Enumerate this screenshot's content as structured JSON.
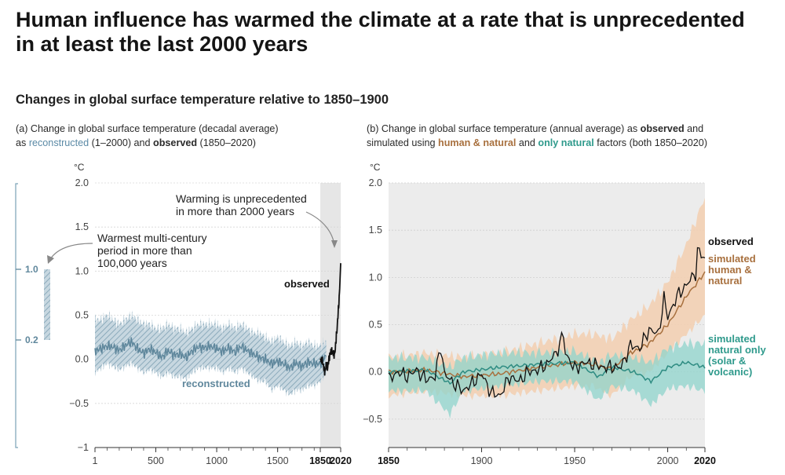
{
  "title": "Human influence has warmed the climate at a rate that is unprecedented in at least the last 2000 years",
  "subtitle": "Changes in global surface temperature relative to 1850–1900",
  "panel_a": {
    "caption_line1": "(a) Change in global surface temperature (decadal average)",
    "caption_as": "as ",
    "caption_reconstructed": "reconstructed",
    "caption_mid": " (1–2000) and ",
    "caption_observed": "observed",
    "caption_end": " (1850–2020)",
    "unit": "°C",
    "annotation_unprecedented_1": "Warming is unprecedented",
    "annotation_unprecedented_2": "in more than 2000 years",
    "annotation_warmest_1": "Warmest multi-century",
    "annotation_warmest_2": "period in more than",
    "annotation_warmest_3": "100,000 years",
    "label_observed": "observed",
    "label_reconstructed": "reconstructed",
    "inset_top": "1.0",
    "inset_bottom": "0.2"
  },
  "panel_b": {
    "caption_line1_pre": "(b) Change in global surface temperature (annual average) as ",
    "caption_observed": "observed",
    "caption_line1_post": " and",
    "caption_line2_pre": "simulated using ",
    "caption_human": "human & natural",
    "caption_and": " and ",
    "caption_natural": "only natural",
    "caption_line2_post": " factors (both 1850–2020)",
    "unit": "°C",
    "label_observed": "observed",
    "label_human_1": "simulated",
    "label_human_2": "human &",
    "label_human_3": "natural",
    "label_natural_1": "simulated",
    "label_natural_2": "natural only",
    "label_natural_3": "(solar &",
    "label_natural_4": "volcanic)"
  },
  "colors": {
    "reconstructed": "#5f879c",
    "reconstructed_band": "#a9c2cf",
    "observed": "#111111",
    "human_natural": "#a8703e",
    "human_band": "#f3cfb0",
    "natural": "#2e8c82",
    "natural_band": "#8fd4cc",
    "shade": "#e6e6e6"
  },
  "chart_data": [
    {
      "type": "line",
      "panel": "a",
      "xlim": [
        1,
        2020
      ],
      "ylim": [
        -1,
        2
      ],
      "yticks": [
        "−1",
        "−0.5",
        "0.0",
        "0.5",
        "1.0",
        "1.5",
        "2.0"
      ],
      "xticks": [
        "1",
        "500",
        "1000",
        "1500",
        "1850",
        "2020"
      ],
      "xtick_values": [
        1,
        500,
        1000,
        1500,
        1850,
        2020
      ],
      "shaded_period": [
        1850,
        2020
      ],
      "inset_range": [
        0.2,
        1.0
      ],
      "series": [
        {
          "name": "reconstructed",
          "x": [
            1,
            50,
            100,
            150,
            200,
            250,
            300,
            350,
            400,
            450,
            500,
            550,
            600,
            650,
            700,
            750,
            800,
            850,
            900,
            950,
            1000,
            1050,
            1100,
            1150,
            1200,
            1250,
            1300,
            1350,
            1400,
            1450,
            1500,
            1550,
            1600,
            1650,
            1700,
            1750,
            1800,
            1850,
            1900
          ],
          "values": [
            0.1,
            0.12,
            0.15,
            0.14,
            0.1,
            0.16,
            0.2,
            0.12,
            0.07,
            0.12,
            0.08,
            0.02,
            0.1,
            0.05,
            0.06,
            0.02,
            0.1,
            0.14,
            0.13,
            0.15,
            0.12,
            0.09,
            0.13,
            0.08,
            0.15,
            0.1,
            0.06,
            0.02,
            0.0,
            -0.05,
            -0.02,
            -0.05,
            -0.1,
            -0.04,
            -0.08,
            -0.03,
            -0.05,
            -0.05,
            0.05
          ],
          "upper": [
            0.45,
            0.45,
            0.5,
            0.45,
            0.4,
            0.45,
            0.5,
            0.45,
            0.4,
            0.4,
            0.35,
            0.35,
            0.4,
            0.35,
            0.35,
            0.3,
            0.35,
            0.4,
            0.4,
            0.4,
            0.4,
            0.35,
            0.4,
            0.35,
            0.4,
            0.35,
            0.3,
            0.3,
            0.25,
            0.2,
            0.25,
            0.2,
            0.15,
            0.2,
            0.15,
            0.2,
            0.15,
            0.15,
            0.2
          ],
          "lower": [
            -0.15,
            -0.1,
            -0.05,
            -0.08,
            -0.12,
            -0.08,
            -0.05,
            -0.1,
            -0.15,
            -0.12,
            -0.15,
            -0.2,
            -0.15,
            -0.2,
            -0.2,
            -0.22,
            -0.15,
            -0.1,
            -0.1,
            -0.1,
            -0.1,
            -0.15,
            -0.1,
            -0.15,
            -0.1,
            -0.15,
            -0.2,
            -0.25,
            -0.25,
            -0.35,
            -0.3,
            -0.35,
            -0.4,
            -0.35,
            -0.35,
            -0.3,
            -0.3,
            -0.25,
            -0.15
          ]
        },
        {
          "name": "observed",
          "x": [
            1850,
            1860,
            1870,
            1880,
            1890,
            1900,
            1910,
            1920,
            1930,
            1940,
            1950,
            1960,
            1970,
            1980,
            1990,
            2000,
            2010,
            2020
          ],
          "values": [
            -0.02,
            0.0,
            -0.03,
            -0.1,
            -0.15,
            -0.05,
            -0.1,
            -0.02,
            0.05,
            0.1,
            0.08,
            0.07,
            0.05,
            0.2,
            0.35,
            0.55,
            0.75,
            1.09
          ]
        }
      ]
    },
    {
      "type": "line",
      "panel": "b",
      "xlim": [
        1850,
        2020
      ],
      "ylim": [
        -0.8,
        2.0
      ],
      "yticks": [
        "−0.5",
        "0.0",
        "0.5",
        "1.0",
        "1.5",
        "2.0"
      ],
      "xticks": [
        "1850",
        "1900",
        "1950",
        "2000",
        "2020"
      ],
      "xtick_values": [
        1850,
        1900,
        1950,
        2000,
        2020
      ],
      "series": [
        {
          "name": "observed",
          "x": [
            1850,
            1855,
            1860,
            1865,
            1870,
            1875,
            1878,
            1880,
            1885,
            1890,
            1895,
            1900,
            1905,
            1910,
            1915,
            1920,
            1925,
            1930,
            1935,
            1940,
            1944,
            1945,
            1950,
            1955,
            1960,
            1965,
            1970,
            1975,
            1980,
            1985,
            1990,
            1995,
            1998,
            2000,
            2005,
            2010,
            2015,
            2016,
            2020
          ],
          "values": [
            -0.08,
            0.0,
            -0.05,
            0.02,
            -0.08,
            -0.05,
            0.28,
            -0.02,
            -0.12,
            -0.2,
            -0.12,
            -0.02,
            -0.22,
            -0.25,
            -0.05,
            -0.1,
            0.0,
            0.02,
            0.08,
            0.2,
            0.4,
            0.2,
            0.03,
            0.1,
            0.08,
            0.05,
            0.05,
            0.05,
            0.28,
            0.25,
            0.45,
            0.4,
            0.78,
            0.58,
            0.8,
            0.92,
            1.05,
            1.28,
            1.2
          ]
        },
        {
          "name": "simulated human & natural",
          "x": [
            1850,
            1870,
            1890,
            1910,
            1930,
            1950,
            1960,
            1970,
            1980,
            1990,
            2000,
            2010,
            2020
          ],
          "values": [
            0.0,
            0.02,
            -0.05,
            -0.02,
            0.05,
            0.1,
            0.08,
            0.03,
            0.2,
            0.3,
            0.5,
            0.8,
            1.05
          ],
          "upper": [
            0.15,
            0.2,
            0.15,
            0.2,
            0.3,
            0.4,
            0.4,
            0.35,
            0.55,
            0.7,
            0.95,
            1.35,
            1.85
          ],
          "lower": [
            -0.25,
            -0.2,
            -0.25,
            -0.25,
            -0.2,
            -0.15,
            -0.15,
            -0.25,
            -0.05,
            0.0,
            0.2,
            0.4,
            0.6
          ]
        },
        {
          "name": "simulated natural only (solar & volcanic)",
          "x": [
            1850,
            1870,
            1883,
            1890,
            1910,
            1930,
            1950,
            1963,
            1970,
            1982,
            1991,
            2000,
            2010,
            2020
          ],
          "values": [
            0.0,
            0.02,
            -0.12,
            0.0,
            0.05,
            0.08,
            0.1,
            -0.05,
            0.05,
            0.0,
            -0.1,
            0.05,
            0.1,
            0.05
          ],
          "upper": [
            0.15,
            0.15,
            0.05,
            0.15,
            0.2,
            0.2,
            0.22,
            0.1,
            0.18,
            0.15,
            0.1,
            0.25,
            0.3,
            0.3
          ],
          "lower": [
            -0.2,
            -0.2,
            -0.45,
            -0.2,
            -0.15,
            -0.1,
            -0.1,
            -0.3,
            -0.15,
            -0.2,
            -0.35,
            -0.18,
            -0.15,
            -0.2
          ]
        }
      ]
    }
  ]
}
